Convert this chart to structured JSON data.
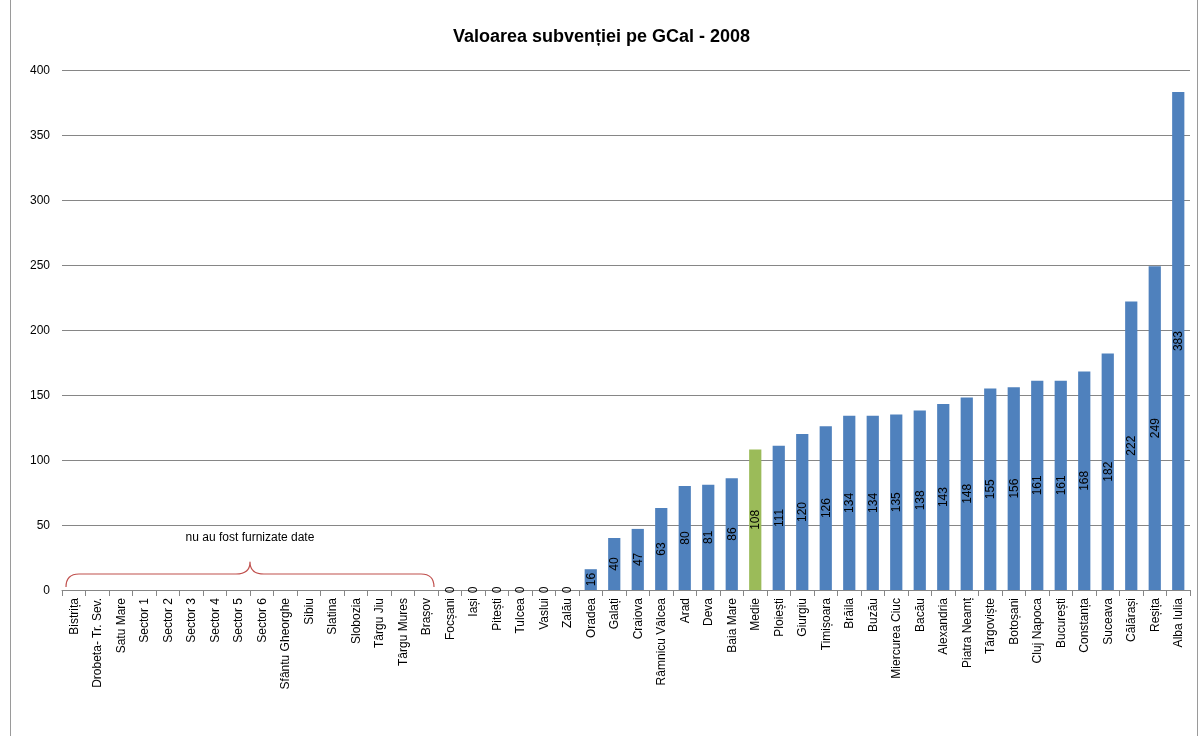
{
  "chart_data": {
    "type": "bar",
    "title": "Valoarea subvenției pe GCal - 2008",
    "categories": [
      "Bistrița",
      "Drobeta- Tr. Sev.",
      "Satu Mare",
      "Sector 1",
      "Sector 2",
      "Sector 3",
      "Sector 4",
      "Sector 5",
      "Sector 6",
      "Sfântu Gheorghe",
      "Sibiu",
      "Slatina",
      "Slobozia",
      "Târgu Jiu",
      "Târgu Mures",
      "Brașov",
      "Focșani",
      "Iași",
      "Pitești",
      "Tulcea",
      "Vaslui",
      "Zalău",
      "Oradea",
      "Galați",
      "Craiova",
      "Râmnicu Vâlcea",
      "Arad",
      "Deva",
      "Baia Mare",
      "Medie",
      "Ploiești",
      "Giurgiu",
      "Timișoara",
      "Brăila",
      "Buzău",
      "Miercurea Ciuc",
      "Bacău",
      "Alexandria",
      "Piatra Neamț",
      "Târgoviște",
      "Botoșani",
      "Cluj Napoca",
      "București",
      "Constanța",
      "Suceava",
      "Călărași",
      "Reșița",
      "Alba Iulia"
    ],
    "values": [
      null,
      null,
      null,
      null,
      null,
      null,
      null,
      null,
      null,
      null,
      null,
      null,
      null,
      null,
      null,
      null,
      0,
      0,
      0,
      0,
      0,
      0,
      16,
      40,
      47,
      63,
      80,
      81,
      86,
      108,
      111,
      120,
      126,
      134,
      134,
      135,
      138,
      143,
      148,
      155,
      156,
      161,
      161,
      168,
      182,
      222,
      249,
      383
    ],
    "colors": [
      "#4f81bd",
      "#4f81bd",
      "#4f81bd",
      "#4f81bd",
      "#4f81bd",
      "#4f81bd",
      "#4f81bd",
      "#4f81bd",
      "#4f81bd",
      "#4f81bd",
      "#4f81bd",
      "#4f81bd",
      "#4f81bd",
      "#4f81bd",
      "#4f81bd",
      "#4f81bd",
      "#4f81bd",
      "#4f81bd",
      "#4f81bd",
      "#4f81bd",
      "#4f81bd",
      "#4f81bd",
      "#4f81bd",
      "#4f81bd",
      "#4f81bd",
      "#4f81bd",
      "#4f81bd",
      "#4f81bd",
      "#4f81bd",
      "#9bbb59",
      "#4f81bd",
      "#4f81bd",
      "#4f81bd",
      "#4f81bd",
      "#4f81bd",
      "#4f81bd",
      "#4f81bd",
      "#4f81bd",
      "#4f81bd",
      "#4f81bd",
      "#4f81bd",
      "#4f81bd",
      "#4f81bd",
      "#4f81bd",
      "#4f81bd",
      "#4f81bd",
      "#4f81bd",
      "#4f81bd"
    ],
    "ylim": [
      0,
      400
    ],
    "yticks": [
      0,
      50,
      100,
      150,
      200,
      250,
      300,
      350,
      400
    ],
    "grid": "y",
    "data_labels": true,
    "annotations": [
      "nu au fost furnizate date"
    ]
  }
}
